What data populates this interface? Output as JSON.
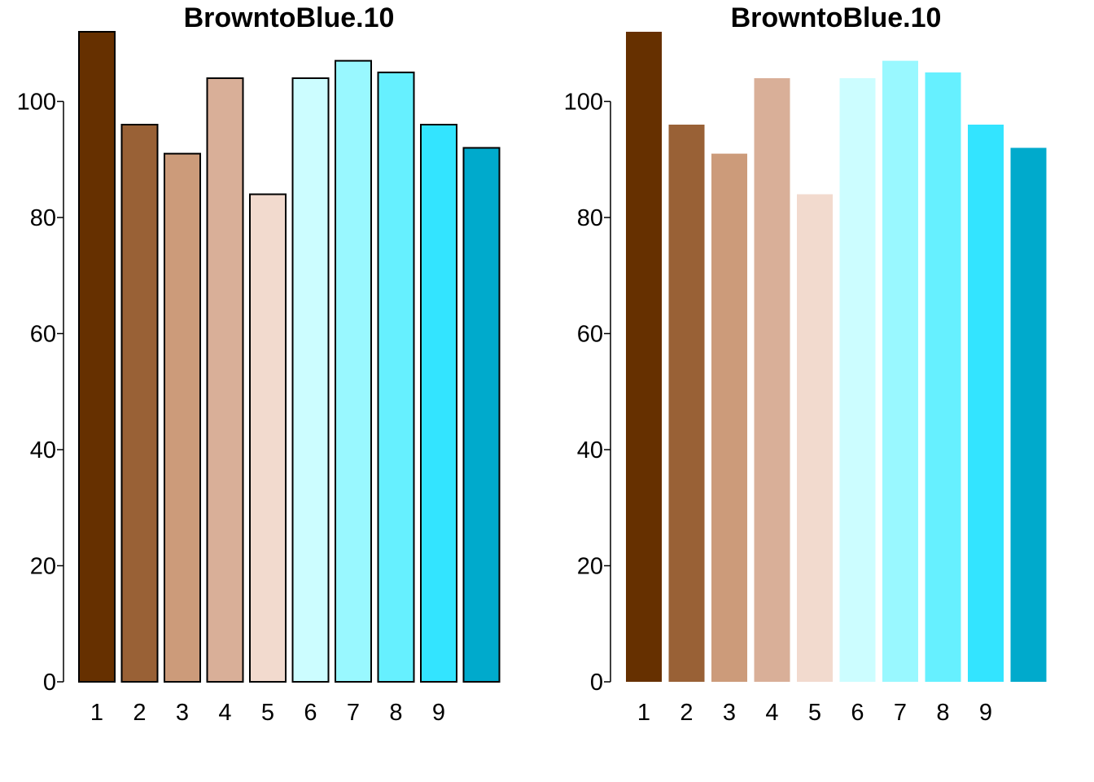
{
  "charts": [
    {
      "id": "left",
      "title": "BrowntoBlue.10",
      "bordered": true
    },
    {
      "id": "right",
      "title": "BrowntoBlue.10",
      "bordered": false
    }
  ],
  "chart_data": [
    {
      "type": "bar",
      "title": "BrowntoBlue.10",
      "xlabel": "",
      "ylabel": "",
      "x_tick_labels": [
        "1",
        "2",
        "3",
        "4",
        "5",
        "6",
        "7",
        "8",
        "9"
      ],
      "values": [
        112,
        96,
        91,
        104,
        84,
        104,
        107,
        105,
        96,
        92
      ],
      "colors": [
        "#663000",
        "#996136",
        "#CC9B7A",
        "#D9AF98",
        "#F2DACE",
        "#CCFDFF",
        "#99F8FF",
        "#66F0FF",
        "#33E4FF",
        "#00AACC"
      ],
      "ylim": [
        0,
        112
      ],
      "y_ticks": [
        0,
        20,
        40,
        60,
        80,
        100
      ],
      "bar_border_color": "#000000",
      "grid": false
    },
    {
      "type": "bar",
      "title": "BrowntoBlue.10",
      "xlabel": "",
      "ylabel": "",
      "x_tick_labels": [
        "1",
        "2",
        "3",
        "4",
        "5",
        "6",
        "7",
        "8",
        "9"
      ],
      "values": [
        112,
        96,
        91,
        104,
        84,
        104,
        107,
        105,
        96,
        92
      ],
      "colors": [
        "#663000",
        "#996136",
        "#CC9B7A",
        "#D9AF98",
        "#F2DACE",
        "#CCFDFF",
        "#99F8FF",
        "#66F0FF",
        "#33E4FF",
        "#00AACC"
      ],
      "ylim": [
        0,
        112
      ],
      "y_ticks": [
        0,
        20,
        40,
        60,
        80,
        100
      ],
      "bar_border_color": "",
      "grid": false
    }
  ]
}
